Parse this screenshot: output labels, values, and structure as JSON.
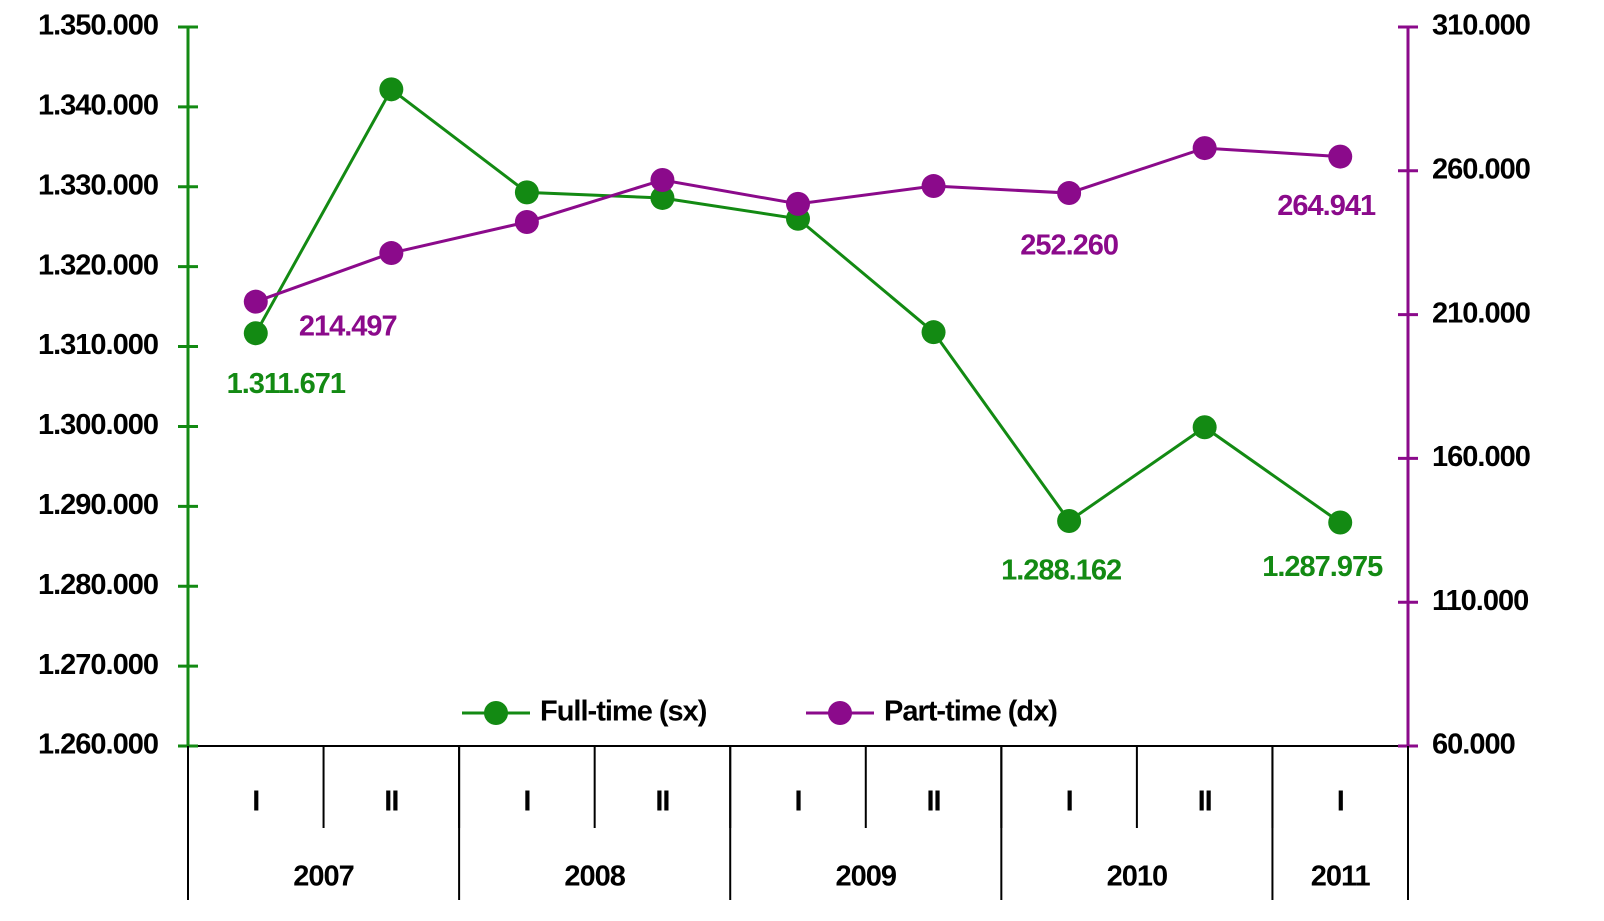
{
  "chart_data": {
    "type": "line",
    "categories": [
      "I",
      "II",
      "I",
      "II",
      "I",
      "II",
      "I",
      "II",
      "I"
    ],
    "x_groups": [
      {
        "label": "2007",
        "span": 2
      },
      {
        "label": "2008",
        "span": 2
      },
      {
        "label": "2009",
        "span": 2
      },
      {
        "label": "2010",
        "span": 2
      },
      {
        "label": "2011",
        "span": 1
      }
    ],
    "series": [
      {
        "name": "Full-time (sx)",
        "color": "#138a13",
        "axis": "y",
        "values": [
          1311671,
          1342200,
          1329300,
          1328600,
          1326000,
          1311800,
          1288162,
          1299900,
          1287975
        ],
        "value_labels": [
          "1.311.671",
          null,
          null,
          null,
          null,
          null,
          "1.288.162",
          null,
          "1.287.975"
        ]
      },
      {
        "name": "Part-time (dx)",
        "color": "#8b0a8b",
        "axis": "y2",
        "values": [
          214497,
          231400,
          242200,
          256800,
          248500,
          254700,
          252260,
          267900,
          264941
        ],
        "value_labels": [
          "214.497",
          null,
          null,
          null,
          null,
          null,
          "252.260",
          null,
          "264.941"
        ]
      }
    ],
    "ylim": [
      1260000,
      1350000
    ],
    "yticks": [
      {
        "value": 1260000,
        "label": "1.260.000"
      },
      {
        "value": 1270000,
        "label": "1.270.000"
      },
      {
        "value": 1280000,
        "label": "1.280.000"
      },
      {
        "value": 1290000,
        "label": "1.290.000"
      },
      {
        "value": 1300000,
        "label": "1.300.000"
      },
      {
        "value": 1310000,
        "label": "1.310.000"
      },
      {
        "value": 1320000,
        "label": "1.320.000"
      },
      {
        "value": 1330000,
        "label": "1.330.000"
      },
      {
        "value": 1340000,
        "label": "1.340.000"
      },
      {
        "value": 1350000,
        "label": "1.350.000"
      }
    ],
    "y2lim": [
      60000,
      310000
    ],
    "y2ticks": [
      {
        "value": 60000,
        "label": "60.000"
      },
      {
        "value": 110000,
        "label": "110.000"
      },
      {
        "value": 160000,
        "label": "160.000"
      },
      {
        "value": 210000,
        "label": "210.000"
      },
      {
        "value": 260000,
        "label": "260.000"
      },
      {
        "value": 310000,
        "label": "310.000"
      }
    ],
    "legend": "bottom"
  }
}
